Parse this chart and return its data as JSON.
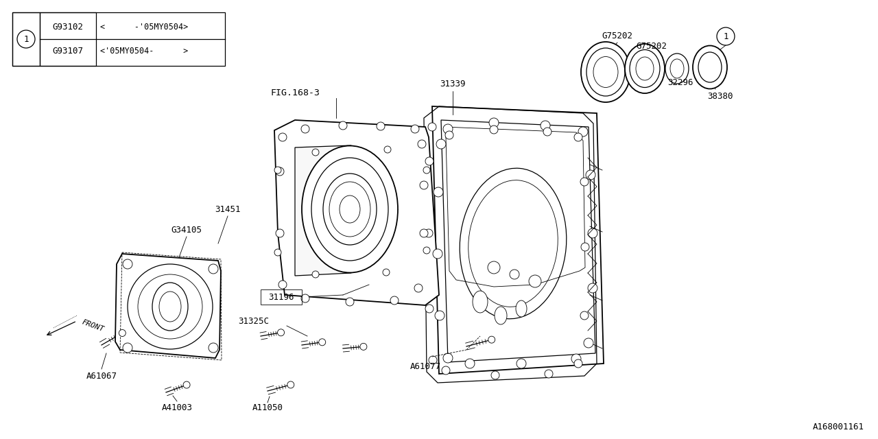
{
  "bg_color": "#ffffff",
  "line_color": "#000000",
  "footer_code": "A168001161",
  "fig_ref": "FIG.168-3",
  "table": {
    "rows": [
      {
        "part": "G93102",
        "desc": "<      -'05MY0504>"
      },
      {
        "part": "G93107",
        "desc": "<'05MY0504-      >"
      }
    ]
  }
}
